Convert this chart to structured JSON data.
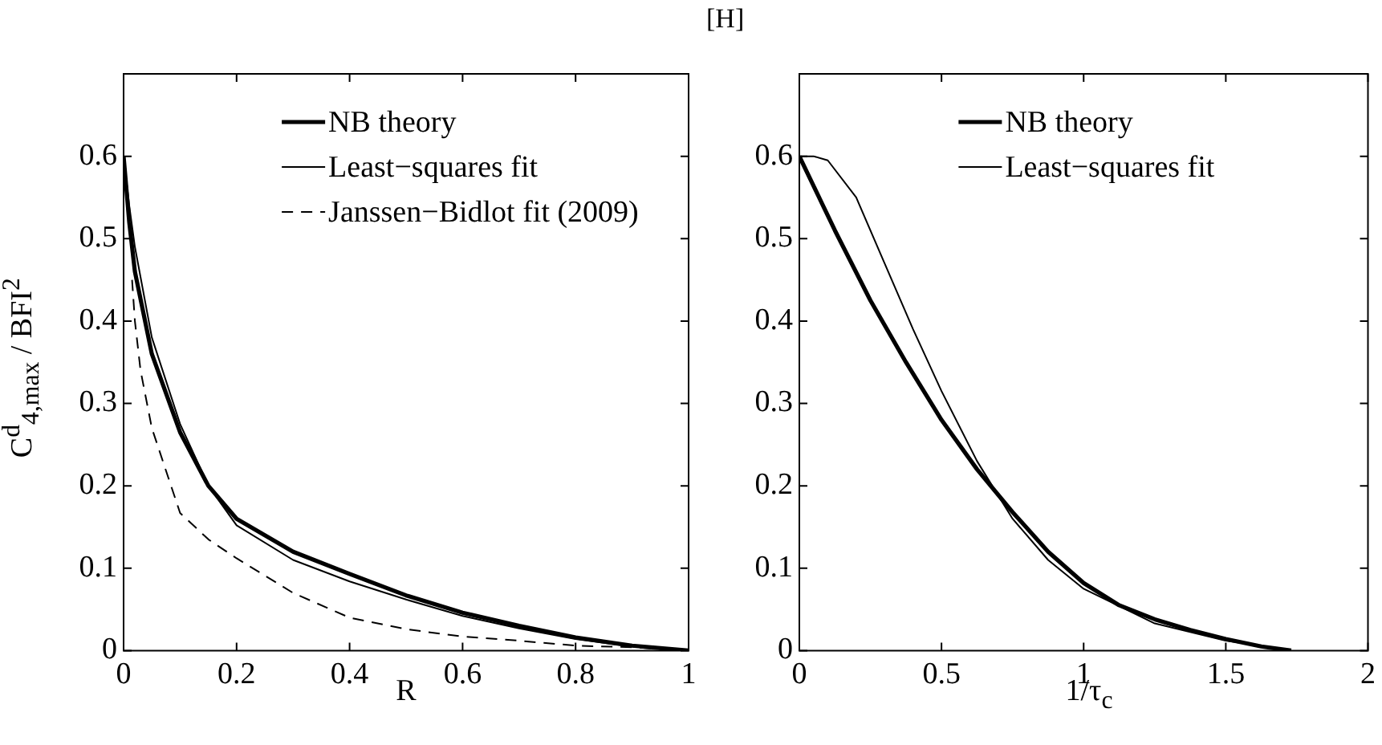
{
  "chart_data": [
    {
      "type": "line",
      "xlabel": "R",
      "ylabel": "C$^{d}$$_{4,max}$ / BFI$^{2}$",
      "xlim": [
        0,
        1
      ],
      "xticks": [
        0,
        0.2,
        0.4,
        0.6,
        0.8,
        1
      ],
      "ylim": [
        0,
        0.7
      ],
      "yticks": [
        0,
        0.1,
        0.2,
        0.3,
        0.4,
        0.5,
        0.6
      ],
      "grid": false,
      "legend": "top",
      "marker": "none",
      "series": [
        {
          "name": "NB theory",
          "color": "#000000",
          "line_style": "solid",
          "x": [
            0,
            0.01,
            0.02,
            0.05,
            0.1,
            0.15,
            0.2,
            0.3,
            0.4,
            0.5,
            0.6,
            0.7,
            0.8,
            0.9,
            1
          ],
          "values": [
            0.6,
            0.52,
            0.46,
            0.36,
            0.265,
            0.2,
            0.16,
            0.12,
            0.093,
            0.067,
            0.046,
            0.03,
            0.016,
            0.006,
            0
          ]
        },
        {
          "name": "Least−squares fit",
          "color": "#000000",
          "line_style": "solid",
          "x": [
            0,
            0.01,
            0.02,
            0.05,
            0.1,
            0.15,
            0.2,
            0.3,
            0.4,
            0.5,
            0.6,
            0.7,
            0.8,
            0.9,
            1
          ],
          "values": [
            0.6,
            0.54,
            0.49,
            0.38,
            0.275,
            0.2,
            0.152,
            0.11,
            0.084,
            0.062,
            0.042,
            0.027,
            0.014,
            0.005,
            0
          ]
        },
        {
          "name": "Janssen−Bidlot fit (2009)",
          "color": "#000000",
          "line_style": "dashed",
          "x": [
            0.015,
            0.02,
            0.03,
            0.05,
            0.1,
            0.15,
            0.2,
            0.3,
            0.4,
            0.5,
            0.6,
            0.7,
            0.8,
            0.9,
            1
          ],
          "values": [
            0.45,
            0.4,
            0.34,
            0.27,
            0.167,
            0.135,
            0.112,
            0.07,
            0.04,
            0.026,
            0.017,
            0.012,
            0.006,
            0.004,
            0
          ]
        }
      ]
    },
    {
      "type": "line",
      "xlabel": "1/τ$_{c}$",
      "annotations": [
        "[H]"
      ],
      "xlim": [
        0,
        2
      ],
      "xticks": [
        0,
        0.5,
        1,
        1.5,
        2
      ],
      "ylim": [
        0,
        0.7
      ],
      "yticks": [
        0,
        0.1,
        0.2,
        0.3,
        0.4,
        0.5,
        0.6
      ],
      "grid": false,
      "legend": "top",
      "marker": "none",
      "series": [
        {
          "name": "NB theory",
          "color": "#000000",
          "line_style": "solid",
          "x": [
            0,
            0.125,
            0.25,
            0.375,
            0.5,
            0.625,
            0.75,
            0.875,
            1,
            1.125,
            1.25,
            1.375,
            1.5,
            1.625,
            1.73
          ],
          "values": [
            0.6,
            0.51,
            0.425,
            0.35,
            0.28,
            0.22,
            0.168,
            0.12,
            0.082,
            0.055,
            0.038,
            0.025,
            0.014,
            0.005,
            0
          ]
        },
        {
          "name": "Least−squares fit",
          "color": "#000000",
          "line_style": "solid",
          "x": [
            0,
            0.05,
            0.1,
            0.2,
            0.3,
            0.4,
            0.5,
            0.625,
            0.75,
            0.875,
            1,
            1.25,
            1.5,
            1.73
          ],
          "values": [
            0.6,
            0.6,
            0.595,
            0.55,
            0.47,
            0.39,
            0.315,
            0.23,
            0.16,
            0.11,
            0.075,
            0.033,
            0.012,
            0
          ]
        }
      ]
    }
  ]
}
